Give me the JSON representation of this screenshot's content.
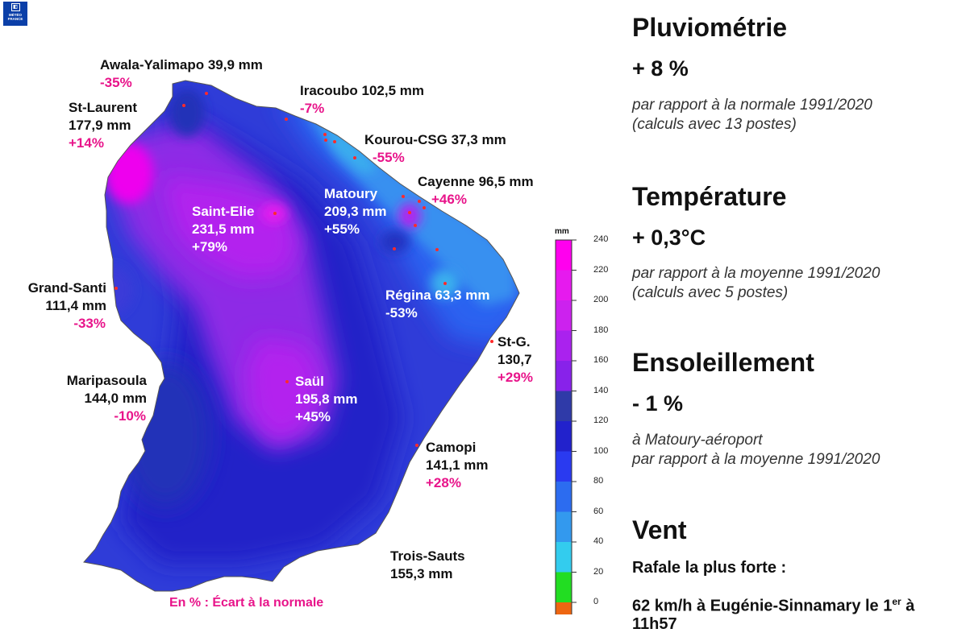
{
  "logo": {
    "line1": "MÉTÉO",
    "line2": "FRANCE"
  },
  "map": {
    "stations": [
      {
        "id": "awala",
        "name": "Awala-Yalimapo 39,9 mm",
        "dev": "-35%"
      },
      {
        "id": "iracoubo",
        "name": "Iracoubo 102,5 mm",
        "dev": "-7%"
      },
      {
        "id": "stlaurent",
        "name": "St-Laurent",
        "value": "177,9 mm",
        "dev": "+14%"
      },
      {
        "id": "kourou",
        "name": "Kourou-CSG 37,3 mm",
        "dev": "-55%"
      },
      {
        "id": "cayenne",
        "name": "Cayenne 96,5 mm",
        "dev": "+46%"
      },
      {
        "id": "matoury",
        "name": "Matoury",
        "value": "209,3 mm",
        "dev": "+55%"
      },
      {
        "id": "sainteelie",
        "name": "Saint-Elie",
        "value": "231,5 mm",
        "dev": "+79%"
      },
      {
        "id": "grandsanti",
        "name": "Grand-Santi",
        "value": "111,4 mm",
        "dev": "-33%"
      },
      {
        "id": "regina",
        "name": "Régina 63,3 mm",
        "dev": "-53%"
      },
      {
        "id": "stg",
        "name": "St-G.",
        "value": "130,7",
        "dev": "+29%"
      },
      {
        "id": "maripasoula",
        "name": "Maripasoula",
        "value": "144,0 mm",
        "dev": "-10%"
      },
      {
        "id": "saul",
        "name": "Saül",
        "value": "195,8 mm",
        "dev": "+45%"
      },
      {
        "id": "camopi",
        "name": "Camopi",
        "value": "141,1 mm",
        "dev": "+28%"
      },
      {
        "id": "troissauts",
        "name": "Trois-Sauts",
        "value": "155,3 mm"
      }
    ],
    "note": "En % : Écart à la normale"
  },
  "legend": {
    "unit": "mm",
    "ticks": [
      "240",
      "220",
      "200",
      "180",
      "160",
      "140",
      "120",
      "100",
      "80",
      "60",
      "40",
      "20",
      "0"
    ],
    "colors": [
      "#ff00ee",
      "#e61aee",
      "#cc22ee",
      "#aa22ee",
      "#8822ea",
      "#2f3aa8",
      "#2222cc",
      "#2a3af0",
      "#2c6cf0",
      "#3399ee",
      "#33ccee",
      "#22dd22",
      "#ee6611"
    ]
  },
  "summary": {
    "rain": {
      "title": "Pluviométrie",
      "value": "+ 8 %",
      "note1": "par rapport à la normale 1991/2020",
      "note2": "(calculs avec 13 postes)"
    },
    "temp": {
      "title": "Température",
      "value": "+ 0,3°C",
      "note1": "par rapport à la moyenne 1991/2020",
      "note2": "(calculs avec 5 postes)"
    },
    "sun": {
      "title": "Ensoleillement",
      "value": "- 1 %",
      "note1": "à Matoury-aéroport",
      "note2": "par rapport à la moyenne 1991/2020"
    },
    "wind": {
      "title": "Vent",
      "gust_label": "Rafale la plus forte :",
      "gust_text": "62 km/h à Eugénie-Sinnamary le 1",
      "gust_sup": "er",
      "gust_tail": " à",
      "gust_time": "11h57"
    }
  }
}
